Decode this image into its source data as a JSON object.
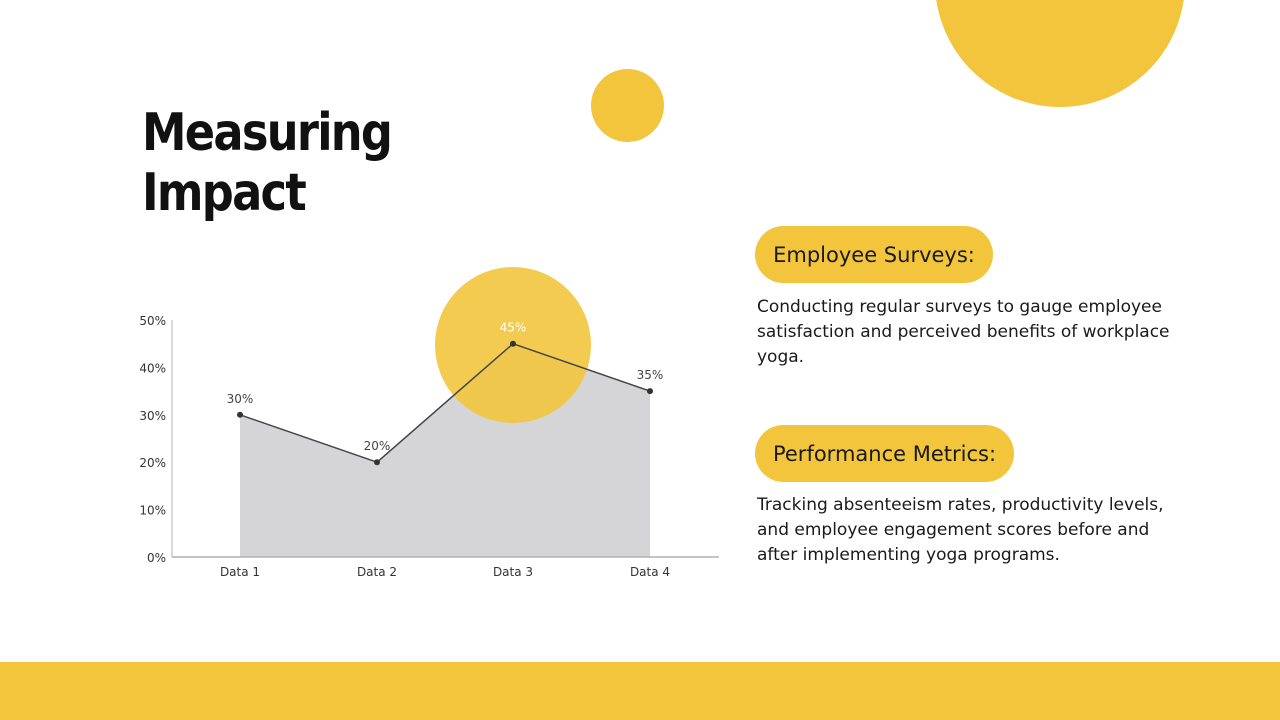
{
  "title": {
    "line1": "Measuring",
    "line2": "Impact"
  },
  "colors": {
    "accent": "#F2C53D",
    "area": "#D5D4D6",
    "line": "#444444",
    "text": "#1a1a1a"
  },
  "sections": [
    {
      "heading": "Employee Surveys:",
      "text": "Conducting regular surveys to gauge employee satisfaction and perceived benefits of workplace yoga."
    },
    {
      "heading": "Performance Metrics:",
      "text": "Tracking absenteeism rates, productivity levels, and employee engagement scores before and after implementing yoga programs."
    }
  ],
  "chart_data": {
    "type": "area",
    "categories": [
      "Data 1",
      "Data 2",
      "Data 3",
      "Data 4"
    ],
    "values": [
      30,
      20,
      45,
      35
    ],
    "value_labels": [
      "30%",
      "20%",
      "45%",
      "35%"
    ],
    "yticks": [
      0,
      10,
      20,
      30,
      40,
      50
    ],
    "ytick_labels": [
      "0%",
      "10%",
      "20%",
      "30%",
      "40%",
      "50%"
    ],
    "ylim": [
      0,
      50
    ],
    "title": "",
    "xlabel": "",
    "ylabel": ""
  }
}
